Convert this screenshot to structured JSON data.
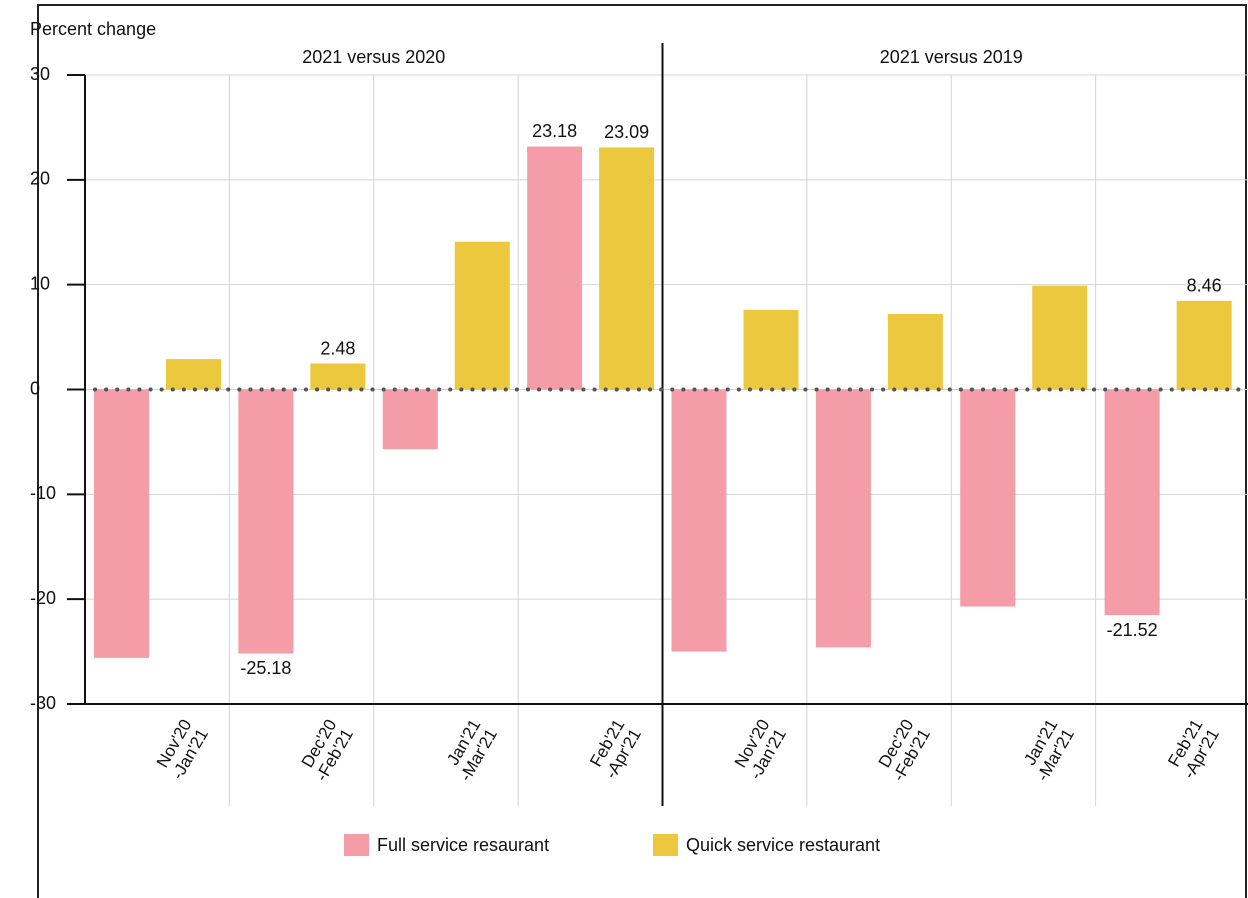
{
  "chart_data": {
    "type": "bar",
    "y_label": "Percent change",
    "panels": [
      {
        "title": "2021 versus 2020"
      },
      {
        "title": "2021 versus 2019"
      }
    ],
    "categories": [
      "Nov'20\n-Jan'21",
      "Dec'20\n-Feb'21",
      "Jan'21\n-Mar'21",
      "Feb'21\n-Apr'21",
      "Nov'20\n-Jan'21",
      "Dec'20\n-Feb'21",
      "Jan'21\n-Mar'21",
      "Feb'21\n-Apr'21"
    ],
    "series": [
      {
        "name": "Full service resaurant",
        "color": "#f49ca8",
        "values": [
          -25.6,
          -25.18,
          -5.7,
          23.18,
          -25.0,
          -24.6,
          -20.7,
          -21.52
        ],
        "value_labels": [
          null,
          "-25.18",
          null,
          "23.18",
          null,
          null,
          null,
          "-21.52"
        ]
      },
      {
        "name": "Quick service restaurant",
        "color": "#ecc83e",
        "values": [
          2.9,
          2.48,
          14.1,
          23.09,
          7.6,
          7.2,
          9.9,
          8.46
        ],
        "value_labels": [
          null,
          "2.48",
          null,
          "23.09",
          null,
          null,
          null,
          "8.46"
        ]
      }
    ],
    "ylim": [
      -30,
      30
    ],
    "yticks": [
      30,
      20,
      10,
      0,
      -10,
      -20,
      -30
    ],
    "grid": true
  }
}
